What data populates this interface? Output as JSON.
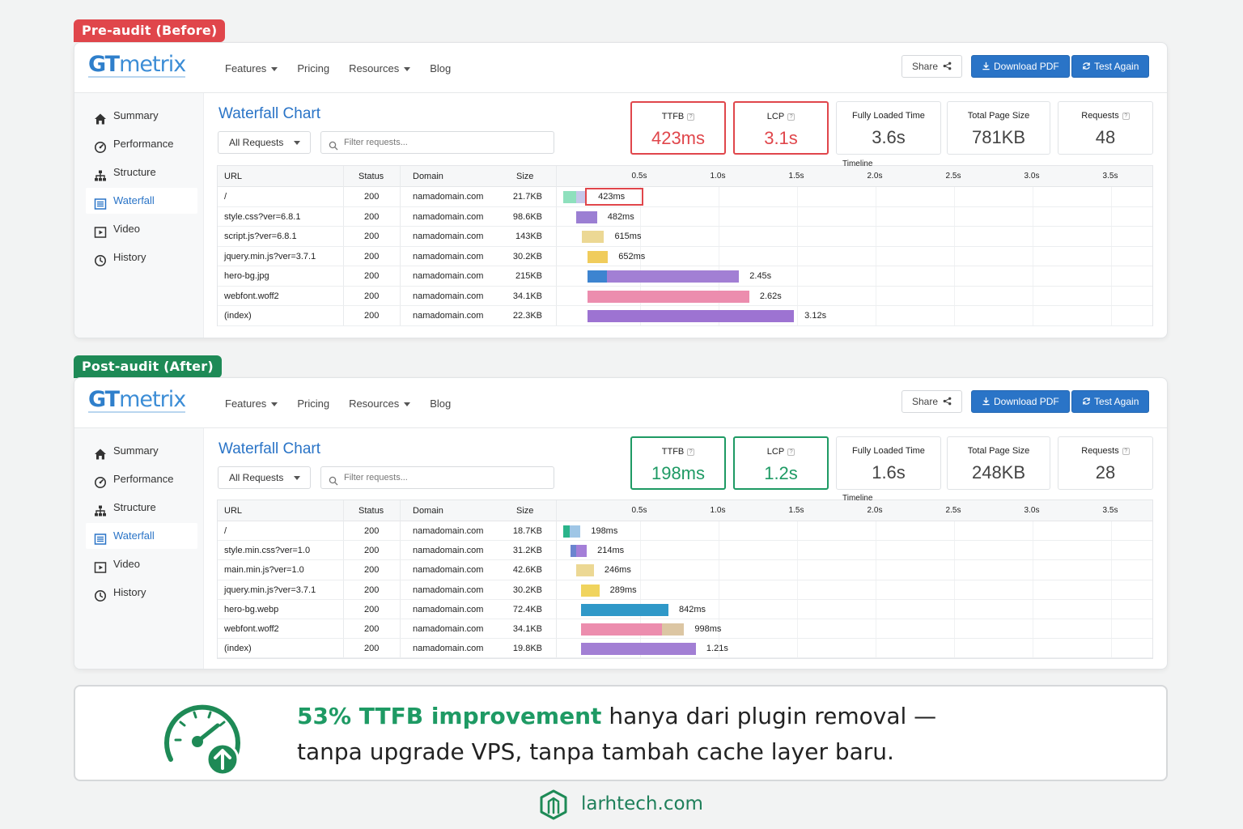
{
  "header": {
    "logo_gt": "GT",
    "logo_metrix": "metrix",
    "nav": [
      "Features",
      "Pricing",
      "Resources",
      "Blog"
    ],
    "share_label": "Share",
    "pdf_label": "Download PDF",
    "test_label": "Test Again"
  },
  "sidebar": [
    "Summary",
    "Performance",
    "Structure",
    "Waterfall",
    "Video",
    "History"
  ],
  "main": {
    "title": "Waterfall Chart",
    "select_value": "All Requests",
    "filter_placeholder": "Filter requests..."
  },
  "table_headers": {
    "url": "URL",
    "status": "Status",
    "domain": "Domain",
    "size": "Size",
    "timeline": "Timeline"
  },
  "ticks": [
    "0.5s",
    "1.0s",
    "1.5s",
    "2.0s",
    "2.5s",
    "3.0s",
    "3.5s"
  ],
  "colors": {
    "bad": "#e0464b",
    "good": "#1e9a64",
    "brand": "#2a74c7"
  },
  "before": {
    "tag": "Pre-audit (Before)",
    "metrics": [
      {
        "label": "TTFB",
        "value": "423ms",
        "help": true,
        "state": "bad"
      },
      {
        "label": "LCP",
        "value": "3.1s",
        "help": true,
        "state": "bad"
      },
      {
        "label": "Fully Loaded Time",
        "value": "3.6s",
        "help": false,
        "state": "normal"
      },
      {
        "label": "Total Page Size",
        "value": "781KB",
        "help": false,
        "state": "normal"
      },
      {
        "label": "Requests",
        "value": "48",
        "help": true,
        "state": "normal"
      }
    ],
    "rows": [
      {
        "url": "/",
        "status": "200",
        "domain": "namadomain.com",
        "size": "21.7KB",
        "label": "423ms",
        "segments": [
          [
            0.0,
            0.16,
            "#8ee0bd"
          ],
          [
            0.16,
            0.3,
            "#c5c7ea"
          ]
        ],
        "highlight": true
      },
      {
        "url": "style.css?ver=6.8.1",
        "status": "200",
        "domain": "namadomain.com",
        "size": "98.6KB",
        "label": "482ms",
        "segments": [
          [
            0.17,
            0.43,
            "#9b7fd3"
          ]
        ]
      },
      {
        "url": "script.js?ver=6.8.1",
        "status": "200",
        "domain": "namadomain.com",
        "size": "143KB",
        "label": "615ms",
        "segments": [
          [
            0.24,
            0.52,
            "#ecd894"
          ]
        ]
      },
      {
        "url": "jquery.min.js?ver=3.7.1",
        "status": "200",
        "domain": "namadomain.com",
        "size": "30.2KB",
        "label": "652ms",
        "segments": [
          [
            0.31,
            0.57,
            "#f0cc5c"
          ]
        ]
      },
      {
        "url": "hero-bg.jpg",
        "status": "200",
        "domain": "namadomain.com",
        "size": "215KB",
        "label": "2.45s",
        "segments": [
          [
            0.31,
            0.56,
            "#3d84d0"
          ],
          [
            0.56,
            2.24,
            "#a27fd4"
          ]
        ]
      },
      {
        "url": "webfont.woff2",
        "status": "200",
        "domain": "namadomain.com",
        "size": "34.1KB",
        "label": "2.62s",
        "segments": [
          [
            0.31,
            2.37,
            "#ec8dae"
          ]
        ]
      },
      {
        "url": "(index)",
        "status": "200",
        "domain": "namadomain.com",
        "size": "22.3KB",
        "label": "3.12s",
        "segments": [
          [
            0.31,
            2.94,
            "#9d73d2"
          ]
        ]
      }
    ]
  },
  "after": {
    "tag": "Post-audit (After)",
    "metrics": [
      {
        "label": "TTFB",
        "value": "198ms",
        "help": true,
        "state": "good"
      },
      {
        "label": "LCP",
        "value": "1.2s",
        "help": true,
        "state": "good"
      },
      {
        "label": "Fully Loaded Time",
        "value": "1.6s",
        "help": false,
        "state": "normal"
      },
      {
        "label": "Total Page Size",
        "value": "248KB",
        "help": false,
        "state": "normal"
      },
      {
        "label": "Requests",
        "value": "28",
        "help": true,
        "state": "normal"
      }
    ],
    "rows": [
      {
        "url": "/",
        "status": "200",
        "domain": "namadomain.com",
        "size": "18.7KB",
        "label": "198ms",
        "segments": [
          [
            0.0,
            0.08,
            "#2ab48a"
          ],
          [
            0.08,
            0.22,
            "#9fc6e6"
          ]
        ]
      },
      {
        "url": "style.min.css?ver=1.0",
        "status": "200",
        "domain": "namadomain.com",
        "size": "31.2KB",
        "label": "214ms",
        "segments": [
          [
            0.09,
            0.17,
            "#6b84cf"
          ],
          [
            0.17,
            0.3,
            "#a47fd8"
          ]
        ]
      },
      {
        "url": "main.min.js?ver=1.0",
        "status": "200",
        "domain": "namadomain.com",
        "size": "42.6KB",
        "label": "246ms",
        "segments": [
          [
            0.17,
            0.39,
            "#ecd894"
          ]
        ]
      },
      {
        "url": "jquery.min.js?ver=3.7.1",
        "status": "200",
        "domain": "namadomain.com",
        "size": "30.2KB",
        "label": "289ms",
        "segments": [
          [
            0.23,
            0.46,
            "#f0d45e"
          ]
        ]
      },
      {
        "url": "hero-bg.webp",
        "status": "200",
        "domain": "namadomain.com",
        "size": "72.4KB",
        "label": "842ms",
        "segments": [
          [
            0.23,
            1.34,
            "#2f98c8"
          ]
        ]
      },
      {
        "url": "webfont.woff2",
        "status": "200",
        "domain": "namadomain.com",
        "size": "34.1KB",
        "label": "998ms",
        "segments": [
          [
            0.23,
            1.26,
            "#ec8dae"
          ],
          [
            1.26,
            1.54,
            "#dcc6a3"
          ]
        ]
      },
      {
        "url": "(index)",
        "status": "200",
        "domain": "namadomain.com",
        "size": "19.8KB",
        "label": "1.21s",
        "segments": [
          [
            0.23,
            1.69,
            "#a27fd4"
          ]
        ]
      }
    ]
  },
  "summary": {
    "highlight": "53% TTFB improvement",
    "line1_rest": " hanya dari plugin removal —",
    "line2": "tanpa upgrade VPS, tanpa tambah cache layer baru."
  },
  "footer": {
    "site": "larhtech.com"
  }
}
